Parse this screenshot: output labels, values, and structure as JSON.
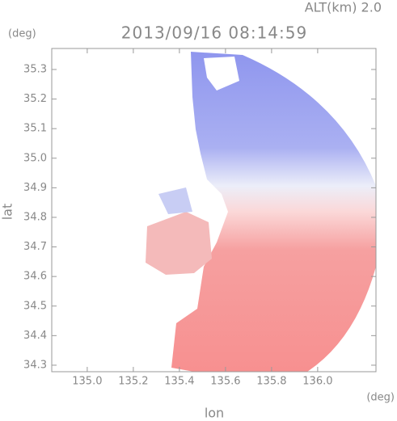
{
  "chart_data": {
    "type": "radar",
    "title": "2013/09/16 08:14:59",
    "altitude_label": "ALT(km) 2.0",
    "y_unit_label": "(deg)",
    "x_unit_label": "(deg)",
    "xlabel": "lon",
    "ylabel": "lat",
    "xlim": [
      134.846,
      136.253
    ],
    "ylim": [
      34.278,
      35.371
    ],
    "xticks": [
      {
        "value": 135,
        "label": "135.0"
      },
      135.2,
      135.4,
      135.6,
      135.8,
      {
        "value": 136,
        "label": "136.0"
      }
    ],
    "yticks": [
      34.3,
      34.4,
      34.5,
      34.6,
      34.7,
      34.8,
      34.9,
      {
        "value": 35,
        "label": "35.0"
      },
      35.1,
      35.2,
      35.3
    ]
  }
}
